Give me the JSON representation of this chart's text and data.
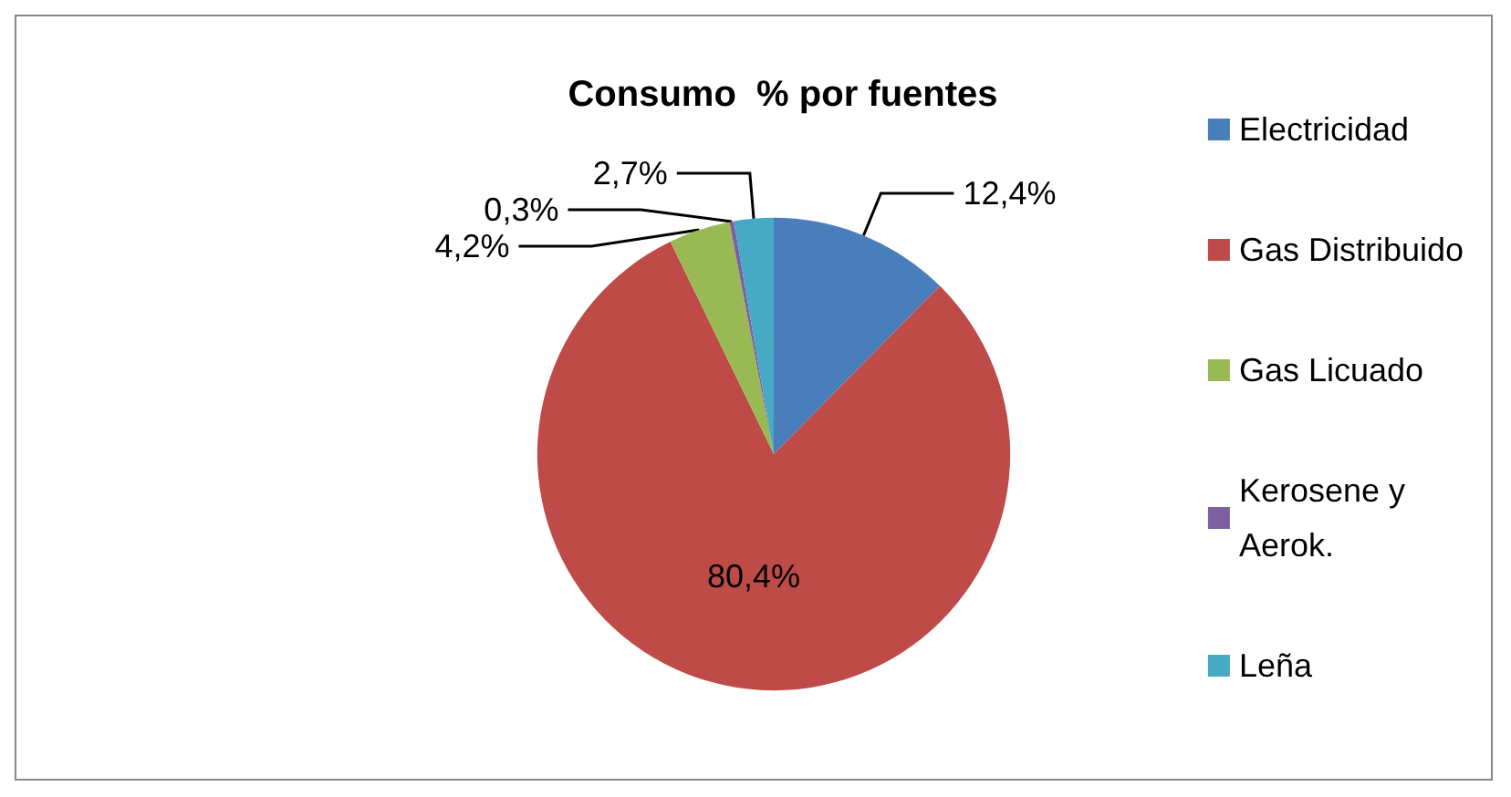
{
  "chart_data": {
    "type": "pie",
    "title": "Consumo  % por fuentes",
    "categories": [
      "Electricidad",
      "Gas Distribuido",
      "Gas Licuado",
      "Kerosene y Aerok.",
      "Leña"
    ],
    "values": [
      12.4,
      80.4,
      4.2,
      0.3,
      2.7
    ],
    "colors": [
      "#4a7ebb",
      "#be4b48",
      "#98b954",
      "#7d60a0",
      "#46aac5"
    ],
    "value_labels": [
      "12,4%",
      "80,4%",
      "4,2%",
      "0,3%",
      "2,7%"
    ],
    "legend": "right"
  }
}
